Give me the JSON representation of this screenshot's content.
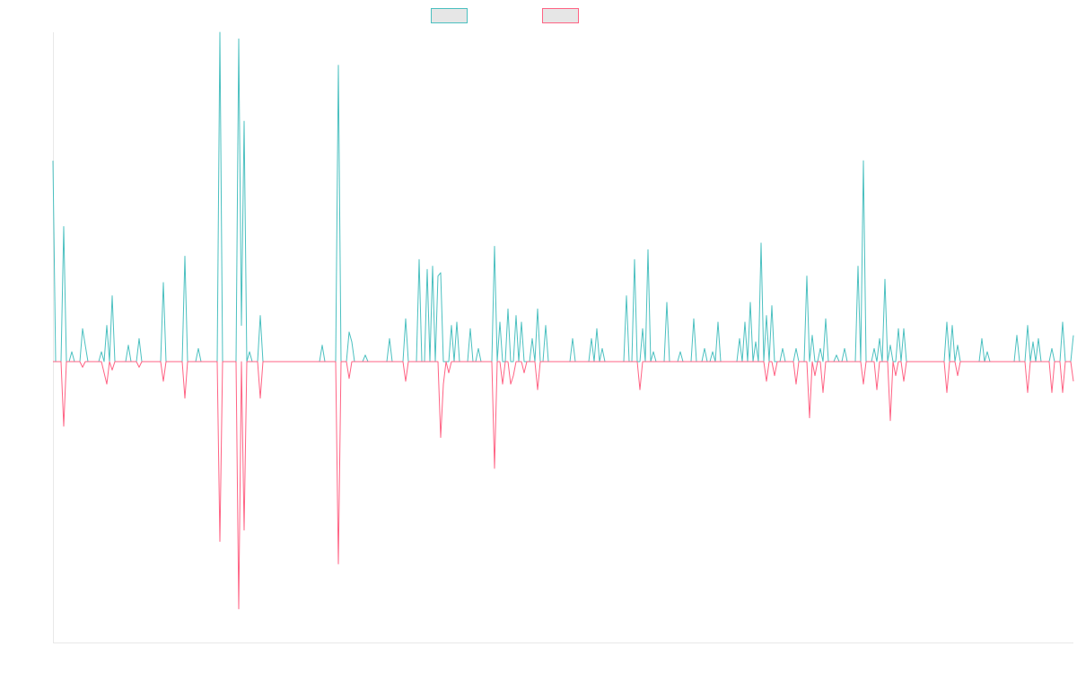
{
  "chart_data": {
    "type": "line",
    "title": "",
    "xlabel": "",
    "ylabel": "",
    "grid": false,
    "legend_placement": "top-center",
    "x_count": 380,
    "ylim": [
      -1.0,
      1.0
    ],
    "series": [
      {
        "name": "",
        "color": "#4bc0c0",
        "legend_fill": "#e6e6e6",
        "spikes": [
          [
            0,
            0.61
          ],
          [
            4,
            0.41
          ],
          [
            7,
            0.03
          ],
          [
            11,
            0.1
          ],
          [
            12,
            0.05
          ],
          [
            18,
            0.03
          ],
          [
            20,
            0.11
          ],
          [
            22,
            0.2
          ],
          [
            28,
            0.05
          ],
          [
            32,
            0.07
          ],
          [
            41,
            0.24
          ],
          [
            49,
            0.32
          ],
          [
            54,
            0.04
          ],
          [
            62,
            1.0
          ],
          [
            69,
            0.98
          ],
          [
            70,
            0.11
          ],
          [
            71,
            0.73
          ],
          [
            73,
            0.03
          ],
          [
            77,
            0.14
          ],
          [
            100,
            0.05
          ],
          [
            106,
            0.9
          ],
          [
            110,
            0.09
          ],
          [
            111,
            0.06
          ],
          [
            116,
            0.02
          ],
          [
            125,
            0.07
          ],
          [
            131,
            0.13
          ],
          [
            136,
            0.31
          ],
          [
            139,
            0.28
          ],
          [
            141,
            0.29
          ],
          [
            143,
            0.26
          ],
          [
            144,
            0.27
          ],
          [
            148,
            0.11
          ],
          [
            150,
            0.12
          ],
          [
            155,
            0.1
          ],
          [
            158,
            0.04
          ],
          [
            164,
            0.35
          ],
          [
            166,
            0.12
          ],
          [
            169,
            0.16
          ],
          [
            172,
            0.14
          ],
          [
            174,
            0.12
          ],
          [
            178,
            0.07
          ],
          [
            180,
            0.16
          ],
          [
            183,
            0.11
          ],
          [
            193,
            0.07
          ],
          [
            200,
            0.07
          ],
          [
            202,
            0.1
          ],
          [
            204,
            0.04
          ],
          [
            213,
            0.2
          ],
          [
            216,
            0.31
          ],
          [
            219,
            0.1
          ],
          [
            221,
            0.34
          ],
          [
            223,
            0.03
          ],
          [
            228,
            0.18
          ],
          [
            233,
            0.03
          ],
          [
            238,
            0.13
          ],
          [
            242,
            0.04
          ],
          [
            245,
            0.03
          ],
          [
            247,
            0.12
          ],
          [
            255,
            0.07
          ],
          [
            257,
            0.12
          ],
          [
            259,
            0.18
          ],
          [
            261,
            0.06
          ],
          [
            263,
            0.36
          ],
          [
            265,
            0.14
          ],
          [
            267,
            0.17
          ],
          [
            271,
            0.04
          ],
          [
            276,
            0.04
          ],
          [
            280,
            0.26
          ],
          [
            282,
            0.08
          ],
          [
            285,
            0.04
          ],
          [
            287,
            0.13
          ],
          [
            291,
            0.02
          ],
          [
            294,
            0.04
          ],
          [
            299,
            0.29
          ],
          [
            301,
            0.61
          ],
          [
            305,
            0.04
          ],
          [
            307,
            0.07
          ],
          [
            309,
            0.25
          ],
          [
            311,
            0.05
          ],
          [
            314,
            0.1
          ],
          [
            316,
            0.1
          ],
          [
            332,
            0.12
          ],
          [
            334,
            0.11
          ],
          [
            336,
            0.05
          ],
          [
            345,
            0.07
          ],
          [
            347,
            0.03
          ],
          [
            358,
            0.08
          ],
          [
            362,
            0.11
          ],
          [
            364,
            0.06
          ],
          [
            366,
            0.07
          ],
          [
            371,
            0.04
          ],
          [
            375,
            0.12
          ],
          [
            379,
            0.08
          ]
        ]
      },
      {
        "name": "",
        "color": "#ff6384",
        "legend_fill": "#e6e6e6",
        "spikes": [
          [
            4,
            -0.23
          ],
          [
            11,
            -0.02
          ],
          [
            19,
            -0.04
          ],
          [
            20,
            -0.08
          ],
          [
            22,
            -0.03
          ],
          [
            32,
            -0.02
          ],
          [
            41,
            -0.07
          ],
          [
            49,
            -0.13
          ],
          [
            62,
            -0.64
          ],
          [
            69,
            -0.88
          ],
          [
            71,
            -0.6
          ],
          [
            77,
            -0.13
          ],
          [
            106,
            -0.72
          ],
          [
            110,
            -0.06
          ],
          [
            131,
            -0.07
          ],
          [
            144,
            -0.27
          ],
          [
            145,
            -0.08
          ],
          [
            147,
            -0.04
          ],
          [
            164,
            -0.38
          ],
          [
            167,
            -0.08
          ],
          [
            170,
            -0.08
          ],
          [
            171,
            -0.05
          ],
          [
            175,
            -0.04
          ],
          [
            180,
            -0.1
          ],
          [
            218,
            -0.1
          ],
          [
            265,
            -0.07
          ],
          [
            268,
            -0.05
          ],
          [
            276,
            -0.08
          ],
          [
            281,
            -0.2
          ],
          [
            283,
            -0.05
          ],
          [
            286,
            -0.11
          ],
          [
            301,
            -0.08
          ],
          [
            306,
            -0.1
          ],
          [
            311,
            -0.21
          ],
          [
            313,
            -0.05
          ],
          [
            316,
            -0.07
          ],
          [
            332,
            -0.11
          ],
          [
            336,
            -0.05
          ],
          [
            362,
            -0.11
          ],
          [
            371,
            -0.11
          ],
          [
            375,
            -0.11
          ],
          [
            379,
            -0.07
          ]
        ]
      }
    ]
  }
}
